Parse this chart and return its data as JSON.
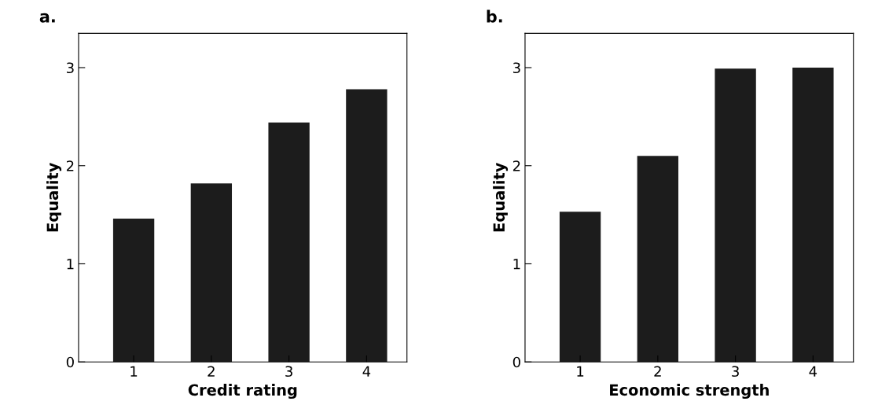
{
  "chart_data": [
    {
      "type": "bar",
      "title": "a.",
      "xlabel": "Credit rating",
      "ylabel": "Equality",
      "categories": [
        "1",
        "2",
        "3",
        "4"
      ],
      "values": [
        1.46,
        1.82,
        2.44,
        2.78
      ],
      "color": "#1c1c1c",
      "ylim": [
        0,
        3.35
      ],
      "yticks": [
        0,
        1,
        2,
        3
      ],
      "grid": false
    },
    {
      "type": "bar",
      "title": "b.",
      "xlabel": "Economic strength",
      "ylabel": "Equality",
      "categories": [
        "1",
        "2",
        "3",
        "4"
      ],
      "values": [
        1.53,
        2.1,
        2.99,
        3.0
      ],
      "color": "#1c1c1c",
      "ylim": [
        0,
        3.35
      ],
      "yticks": [
        0,
        1,
        2,
        3
      ],
      "grid": false
    }
  ]
}
